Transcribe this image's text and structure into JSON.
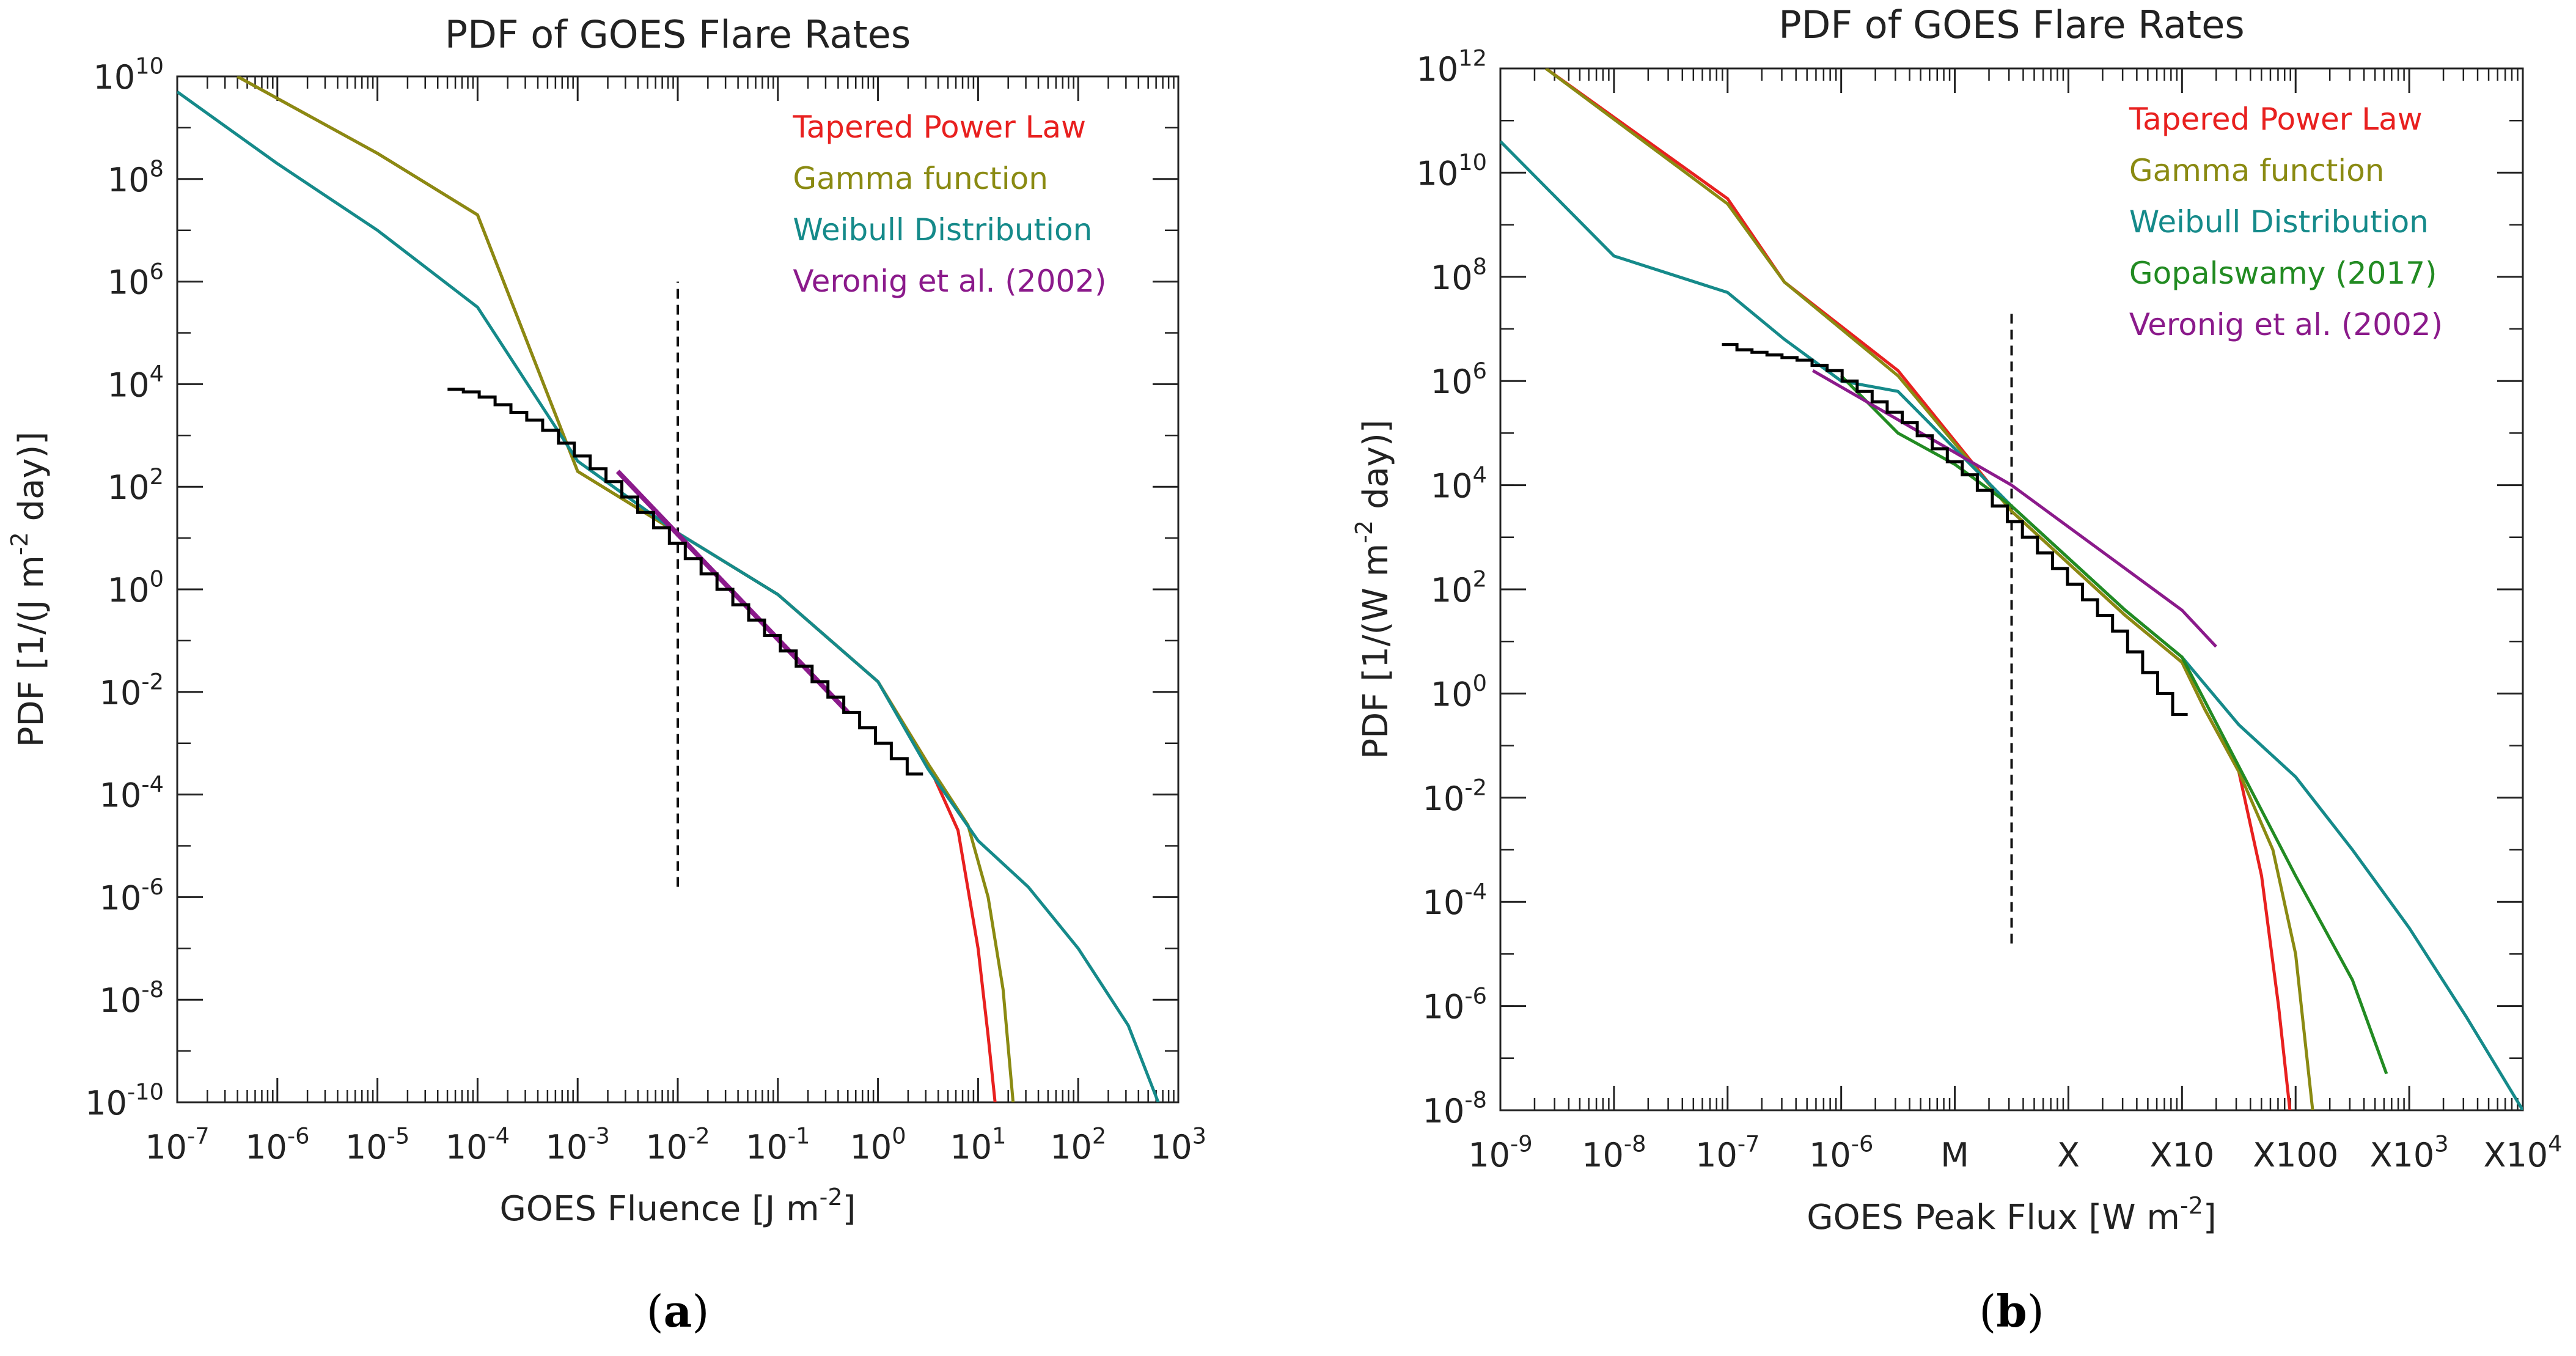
{
  "chart_data": [
    {
      "type": "line",
      "panel_label": "(a)",
      "title": "PDF of GOES Flare Rates",
      "xlabel": "GOES Fluence [J m^-2]",
      "ylabel": "PDF [1/(J m^-2 day)]",
      "xscale": "log",
      "yscale": "log",
      "xlim_log10": [
        -7,
        3
      ],
      "ylim_log10": [
        -10,
        10
      ],
      "x_ticks": [
        {
          "log": -7,
          "base": "10",
          "exp": "-7"
        },
        {
          "log": -6,
          "base": "10",
          "exp": "-6"
        },
        {
          "log": -5,
          "base": "10",
          "exp": "-5"
        },
        {
          "log": -4,
          "base": "10",
          "exp": "-4"
        },
        {
          "log": -3,
          "base": "10",
          "exp": "-3"
        },
        {
          "log": -2,
          "base": "10",
          "exp": "-2"
        },
        {
          "log": -1,
          "base": "10",
          "exp": "-1"
        },
        {
          "log": 0,
          "base": "10",
          "exp": "0"
        },
        {
          "log": 1,
          "base": "10",
          "exp": "1"
        },
        {
          "log": 2,
          "base": "10",
          "exp": "2"
        },
        {
          "log": 3,
          "base": "10",
          "exp": "3"
        }
      ],
      "y_ticks": [
        {
          "log": -10,
          "base": "10",
          "exp": "-10"
        },
        {
          "log": -8,
          "base": "10",
          "exp": "-8"
        },
        {
          "log": -6,
          "base": "10",
          "exp": "-6"
        },
        {
          "log": -4,
          "base": "10",
          "exp": "-4"
        },
        {
          "log": -2,
          "base": "10",
          "exp": "-2"
        },
        {
          "log": 0,
          "base": "10",
          "exp": "0"
        },
        {
          "log": 2,
          "base": "10",
          "exp": "2"
        },
        {
          "log": 4,
          "base": "10",
          "exp": "4"
        },
        {
          "log": 6,
          "base": "10",
          "exp": "6"
        },
        {
          "log": 8,
          "base": "10",
          "exp": "8"
        },
        {
          "log": 10,
          "base": "10",
          "exp": "10"
        }
      ],
      "series": [
        {
          "name": "Tapered Power Law",
          "color": "#e8201f",
          "points_log10": [
            [
              -6.4,
              10
            ],
            [
              -5,
              8.5
            ],
            [
              -4,
              7.3
            ],
            [
              -3,
              2.3
            ],
            [
              -2,
              1.1
            ],
            [
              -1,
              -0.1
            ],
            [
              0,
              -1.8
            ],
            [
              0.5,
              -3.4
            ],
            [
              0.8,
              -4.7
            ],
            [
              1.0,
              -7.0
            ],
            [
              1.1,
              -8.7
            ],
            [
              1.17,
              -10
            ]
          ]
        },
        {
          "name": "Gamma function",
          "color": "#8a8a12",
          "points_log10": [
            [
              -6.4,
              10
            ],
            [
              -5,
              8.5
            ],
            [
              -4,
              7.3
            ],
            [
              -3,
              2.3
            ],
            [
              -2,
              1.1
            ],
            [
              -1,
              -0.1
            ],
            [
              0,
              -1.8
            ],
            [
              0.5,
              -3.4
            ],
            [
              0.9,
              -4.6
            ],
            [
              1.1,
              -6.0
            ],
            [
              1.25,
              -7.8
            ],
            [
              1.35,
              -10
            ]
          ]
        },
        {
          "name": "Weibull Distribution",
          "color": "#158a8a",
          "points_log10": [
            [
              -7,
              9.7
            ],
            [
              -6,
              8.3
            ],
            [
              -5,
              7.0
            ],
            [
              -4,
              5.5
            ],
            [
              -3,
              2.5
            ],
            [
              -2,
              1.1
            ],
            [
              -1,
              -0.1
            ],
            [
              0,
              -1.8
            ],
            [
              0.5,
              -3.5
            ],
            [
              1,
              -4.9
            ],
            [
              1.5,
              -5.8
            ],
            [
              2,
              -7.0
            ],
            [
              2.5,
              -8.5
            ],
            [
              2.8,
              -10
            ]
          ]
        },
        {
          "name": "Veronig et al. (2002)",
          "color": "#8b1a8b",
          "width": 8,
          "points_log10": [
            [
              -2.6,
              2.3
            ],
            [
              -0.3,
              -2.4
            ]
          ]
        }
      ],
      "histogram_log10": {
        "x_start": -4.3,
        "x_end": 0.45,
        "y_values": [
          3.9,
          3.85,
          3.75,
          3.6,
          3.45,
          3.3,
          3.1,
          2.85,
          2.6,
          2.35,
          2.1,
          1.8,
          1.5,
          1.2,
          0.9,
          0.6,
          0.3,
          0.0,
          -0.3,
          -0.6,
          -0.9,
          -1.2,
          -1.5,
          -1.8,
          -2.1,
          -2.4,
          -2.7,
          -3.0,
          -3.3,
          -3.6
        ]
      },
      "dashed_vline": {
        "x_log10": -2,
        "y_log10": [
          -5.8,
          6.0
        ]
      }
    },
    {
      "type": "line",
      "panel_label": "(b)",
      "title": "PDF of GOES Flare Rates",
      "xlabel": "GOES Peak Flux [W m^-2]",
      "ylabel": "PDF [1/(W m^-2 day)]",
      "xscale": "log",
      "yscale": "log",
      "xlim_log10": [
        -9,
        0
      ],
      "ylim_log10": [
        -8,
        12
      ],
      "x_ticks": [
        {
          "log": -9,
          "base": "10",
          "exp": "-9"
        },
        {
          "log": -8,
          "base": "10",
          "exp": "-8"
        },
        {
          "log": -7,
          "base": "10",
          "exp": "-7"
        },
        {
          "log": -6,
          "base": "10",
          "exp": "-6"
        },
        {
          "log": -5,
          "base": "M",
          "exp": ""
        },
        {
          "log": -4,
          "base": "X",
          "exp": ""
        },
        {
          "log": -3,
          "base": "X10",
          "exp": ""
        },
        {
          "log": -2,
          "base": "X100",
          "exp": ""
        },
        {
          "log": -1,
          "base": "X10",
          "exp": "3"
        },
        {
          "log": 0,
          "base": "X10",
          "exp": "4"
        }
      ],
      "y_ticks": [
        {
          "log": -8,
          "base": "10",
          "exp": "-8"
        },
        {
          "log": -6,
          "base": "10",
          "exp": "-6"
        },
        {
          "log": -4,
          "base": "10",
          "exp": "-4"
        },
        {
          "log": -2,
          "base": "10",
          "exp": "-2"
        },
        {
          "log": 0,
          "base": "10",
          "exp": "0"
        },
        {
          "log": 2,
          "base": "10",
          "exp": "2"
        },
        {
          "log": 4,
          "base": "10",
          "exp": "4"
        },
        {
          "log": 6,
          "base": "10",
          "exp": "6"
        },
        {
          "log": 8,
          "base": "10",
          "exp": "8"
        },
        {
          "log": 10,
          "base": "10",
          "exp": "10"
        },
        {
          "log": 12,
          "base": "10",
          "exp": "12"
        }
      ],
      "series": [
        {
          "name": "Tapered Power Law",
          "color": "#e8201f",
          "points_log10": [
            [
              -8.6,
              12
            ],
            [
              -7,
              9.5
            ],
            [
              -6.5,
              7.9
            ],
            [
              -5.5,
              6.2
            ],
            [
              -4.5,
              3.5
            ],
            [
              -3.5,
              1.5
            ],
            [
              -3,
              0.6
            ],
            [
              -2.8,
              -0.3
            ],
            [
              -2.5,
              -1.5
            ],
            [
              -2.3,
              -3.5
            ],
            [
              -2.15,
              -6.0
            ],
            [
              -2.05,
              -8
            ]
          ]
        },
        {
          "name": "Gamma function",
          "color": "#8a8a12",
          "points_log10": [
            [
              -8.6,
              12
            ],
            [
              -7,
              9.4
            ],
            [
              -6.5,
              7.9
            ],
            [
              -5.5,
              6.1
            ],
            [
              -4.5,
              3.5
            ],
            [
              -3.5,
              1.5
            ],
            [
              -3,
              0.6
            ],
            [
              -2.8,
              -0.3
            ],
            [
              -2.5,
              -1.5
            ],
            [
              -2.2,
              -3.0
            ],
            [
              -2.0,
              -5.0
            ],
            [
              -1.85,
              -8
            ]
          ]
        },
        {
          "name": "Weibull Distribution",
          "color": "#158a8a",
          "points_log10": [
            [
              -9,
              10.6
            ],
            [
              -8,
              8.4
            ],
            [
              -7,
              7.7
            ],
            [
              -6.5,
              6.8
            ],
            [
              -6,
              6.0
            ],
            [
              -5.5,
              5.8
            ],
            [
              -4.5,
              3.6
            ],
            [
              -3.5,
              1.6
            ],
            [
              -3,
              0.7
            ],
            [
              -2.5,
              -0.6
            ],
            [
              -2,
              -1.6
            ],
            [
              -1.5,
              -3.0
            ],
            [
              -1,
              -4.5
            ],
            [
              -0.5,
              -6.2
            ],
            [
              0,
              -8
            ]
          ]
        },
        {
          "name": "Gopalswamy (2017)",
          "color": "#228b22",
          "points_log10": [
            [
              -6,
              6.1
            ],
            [
              -5.5,
              5.0
            ],
            [
              -5,
              4.4
            ],
            [
              -4.5,
              3.6
            ],
            [
              -4,
              2.6
            ],
            [
              -3.5,
              1.6
            ],
            [
              -3,
              0.7
            ],
            [
              -2.5,
              -1.4
            ],
            [
              -2,
              -3.5
            ],
            [
              -1.5,
              -5.5
            ],
            [
              -1.2,
              -7.3
            ]
          ]
        },
        {
          "name": "Veronig et al. (2002)",
          "color": "#8b1a8b",
          "points_log10": [
            [
              -6.25,
              6.2
            ],
            [
              -4.5,
              4.0
            ],
            [
              -3,
              1.6
            ],
            [
              -2.7,
              0.9
            ]
          ]
        }
      ],
      "histogram_log10": {
        "x_start": -7.05,
        "x_end": -2.95,
        "y_values": [
          6.7,
          6.6,
          6.55,
          6.5,
          6.45,
          6.4,
          6.3,
          6.2,
          6.0,
          5.8,
          5.6,
          5.4,
          5.2,
          4.95,
          4.7,
          4.45,
          4.2,
          3.9,
          3.6,
          3.3,
          3.0,
          2.7,
          2.4,
          2.1,
          1.8,
          1.5,
          1.2,
          0.8,
          0.4,
          0.0,
          -0.4
        ]
      },
      "dashed_vline": {
        "x_log10": -4.5,
        "y_log10": [
          -4.8,
          7.4
        ]
      }
    }
  ]
}
